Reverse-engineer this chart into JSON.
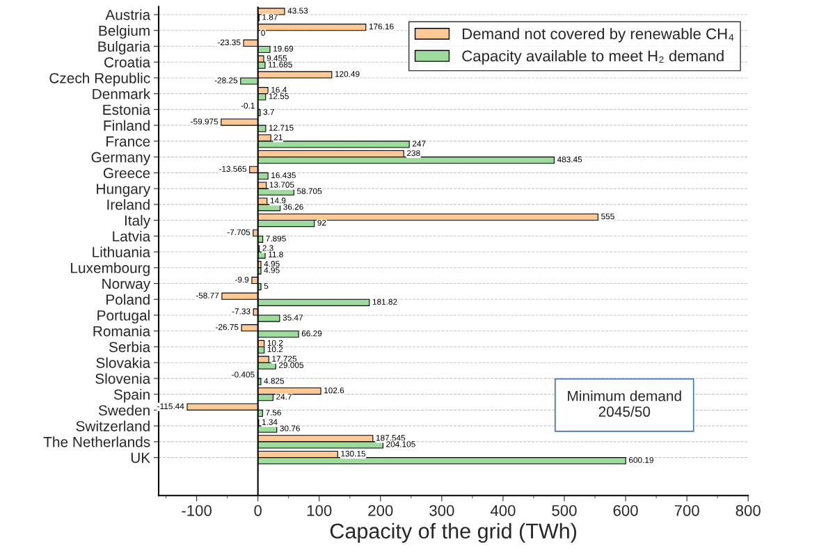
{
  "chart_data": {
    "type": "bar",
    "orientation": "horizontal",
    "xlabel": "Capacity of the grid (TWh)",
    "categories": [
      "Austria",
      "Belgium",
      "Bulgaria",
      "Croatia",
      "Czech Republic",
      "Denmark",
      "Estonia",
      "Finland",
      "France",
      "Germany",
      "Greece",
      "Hungary",
      "Ireland",
      "Italy",
      "Latvia",
      "Lithuania",
      "Luxembourg",
      "Norway",
      "Poland",
      "Portugal",
      "Romania",
      "Serbia",
      "Slovakia",
      "Slovenia",
      "Spain",
      "Sweden",
      "Switzerland",
      "The Netherlands",
      "UK"
    ],
    "series": [
      {
        "name": "Demand not covered by renewable CH₄",
        "color": "#ffc994",
        "values": [
          43.53,
          176.16,
          -23.35,
          9.455,
          120.49,
          16.4,
          -0.1,
          -59.975,
          21,
          238,
          -13.565,
          13.705,
          14.9,
          555,
          -7.705,
          2.3,
          4.95,
          -9.9,
          -58.77,
          -7.33,
          -26.75,
          10.2,
          17.725,
          -0.405,
          102.6,
          -115.44,
          1.34,
          187.545,
          130.15
        ]
      },
      {
        "name": "Capacity available to meet H₂ demand",
        "color": "#9ddc9d",
        "values": [
          1.87,
          0,
          19.69,
          11.685,
          -28.25,
          12.55,
          3.7,
          12.715,
          247,
          483.45,
          16.435,
          58.705,
          36.26,
          92,
          7.895,
          11.8,
          4.95,
          5,
          181.82,
          35.47,
          66.29,
          10.2,
          29.005,
          4.825,
          24.7,
          7.56,
          30.76,
          204.105,
          600.19
        ]
      }
    ],
    "xlim": [
      -162,
      800
    ],
    "xticks": [
      -100,
      0,
      100,
      200,
      300,
      400,
      500,
      600,
      700,
      800
    ],
    "data_labels": true,
    "grid": "y",
    "legend": "top right",
    "annotations": [
      "Minimum demand\n2045/50"
    ]
  }
}
